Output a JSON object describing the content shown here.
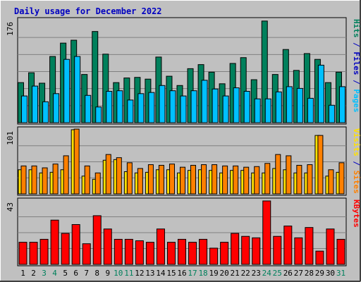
{
  "chart_data": {
    "type": "bar",
    "title": "Daily usage for December 2022",
    "categories": [
      "1",
      "2",
      "3",
      "4",
      "5",
      "6",
      "7",
      "8",
      "9",
      "10",
      "11",
      "12",
      "13",
      "14",
      "15",
      "16",
      "17",
      "18",
      "19",
      "20",
      "21",
      "22",
      "23",
      "24",
      "25",
      "26",
      "27",
      "28",
      "29",
      "30",
      "31"
    ],
    "weekend_days": [
      "3",
      "4",
      "10",
      "11",
      "17",
      "18",
      "24",
      "25",
      "31"
    ],
    "panels": [
      {
        "name": "pages-files-hits",
        "ymax": 176,
        "ymax_label": "176",
        "side_labels": [
          {
            "text": "Hits",
            "color": "#00805c"
          },
          {
            "text": " / ",
            "color": "#0000c0"
          },
          {
            "text": "Files",
            "color": "#0000c0"
          },
          {
            "text": " / ",
            "color": "#0000c0"
          },
          {
            "text": "Pages",
            "color": "#00c0ff"
          }
        ],
        "series": [
          {
            "name": "Hits",
            "color": "#00805c",
            "values": [
              69,
              86,
              68,
              114,
              137,
              142,
              83,
              157,
              118,
              69,
              77,
              78,
              75,
              113,
              80,
              64,
              93,
              100,
              87,
              67,
              102,
              112,
              74,
              175,
              83,
              126,
              90,
              119,
              109,
              69,
              87
            ]
          },
          {
            "name": "Files",
            "color": "#00c0ff",
            "values": [
              46,
              63,
              36,
              50,
              109,
              114,
              47,
              27,
              54,
              55,
              39,
              50,
              52,
              64,
              55,
              46,
              55,
              73,
              58,
              46,
              60,
              54,
              41,
              41,
              53,
              62,
              59,
              42,
              99,
              30,
              62
            ]
          },
          {
            "name": "Pages",
            "color": "#00c0ff",
            "values": [
              0,
              0,
              0,
              0,
              0,
              0,
              0,
              0,
              0,
              0,
              0,
              0,
              0,
              0,
              0,
              0,
              0,
              0,
              0,
              0,
              0,
              0,
              0,
              0,
              0,
              0,
              0,
              0,
              0,
              0,
              0
            ]
          }
        ]
      },
      {
        "name": "visits-sites",
        "ymax": 101,
        "ymax_label": "101",
        "side_labels": [
          {
            "text": "Visits",
            "color": "#ffe000"
          },
          {
            "text": " / ",
            "color": "#0000c0"
          },
          {
            "text": "Sites",
            "color": "#ff8000"
          }
        ],
        "series": [
          {
            "name": "Visits",
            "color": "#ffe000",
            "values": [
              38,
              38,
              33,
              34,
              38,
              101,
              28,
              23,
              53,
              54,
              35,
              33,
              34,
              38,
              38,
              33,
              37,
              38,
              37,
              33,
              37,
              37,
              33,
              33,
              40,
              38,
              33,
              33,
              92,
              28,
              34
            ]
          },
          {
            "name": "Sites",
            "color": "#ff8000",
            "values": [
              44,
              44,
              41,
              47,
              60,
              102,
              44,
              33,
              62,
              57,
              49,
              40,
              46,
              45,
              47,
              42,
              45,
              46,
              46,
              44,
              44,
              42,
              43,
              48,
              62,
              60,
              45,
              46,
              92,
              38,
              49
            ]
          }
        ]
      },
      {
        "name": "kbytes",
        "ymax": 43,
        "ymax_label": "43",
        "side_labels": [
          {
            "text": "KBytes",
            "color": "#ff0000"
          }
        ],
        "series": [
          {
            "name": "KBytes",
            "color": "#ff0000",
            "values": [
              15,
              15,
              17,
              30,
              21,
              27,
              14,
              33,
              24,
              17,
              17,
              16,
              15,
              24,
              15,
              17,
              15,
              17,
              11,
              15,
              21,
              19,
              18,
              43,
              19,
              26,
              18,
              25,
              9,
              24,
              17
            ]
          }
        ]
      }
    ],
    "grid": true
  }
}
